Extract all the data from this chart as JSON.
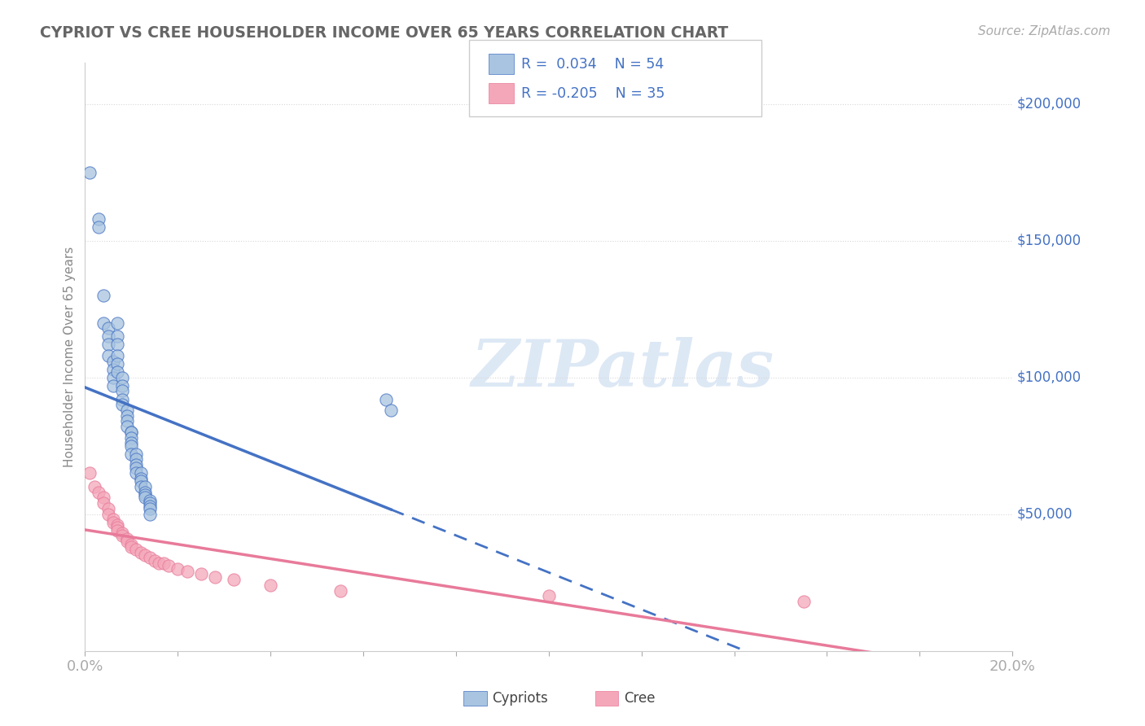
{
  "title": "CYPRIOT VS CREE HOUSEHOLDER INCOME OVER 65 YEARS CORRELATION CHART",
  "source_text": "Source: ZipAtlas.com",
  "ylabel": "Householder Income Over 65 years",
  "xlim": [
    0.0,
    0.2
  ],
  "ylim": [
    0,
    215000
  ],
  "xtick_vals": [
    0.0,
    0.02,
    0.04,
    0.06,
    0.08,
    0.1,
    0.12,
    0.14,
    0.16,
    0.18,
    0.2
  ],
  "ytick_values": [
    50000,
    100000,
    150000,
    200000
  ],
  "ytick_labels": [
    "$50,000",
    "$100,000",
    "$150,000",
    "$200,000"
  ],
  "background_color": "#ffffff",
  "cypriot_color": "#a8c4e0",
  "cree_color": "#f4a7b9",
  "cypriot_line_color": "#4472c4",
  "cree_line_color": "#e87a9a",
  "dashed_line_color": "#b0c4de",
  "grid_color": "#d8d8d8",
  "legend_text_color": "#4472c4",
  "axis_color": "#4472c4",
  "title_color": "#666666",
  "watermark": "ZIPatlas",
  "cypriot_x": [
    0.001,
    0.003,
    0.003,
    0.004,
    0.004,
    0.005,
    0.005,
    0.005,
    0.005,
    0.006,
    0.006,
    0.006,
    0.006,
    0.007,
    0.007,
    0.007,
    0.007,
    0.007,
    0.007,
    0.008,
    0.008,
    0.008,
    0.008,
    0.008,
    0.009,
    0.009,
    0.009,
    0.009,
    0.01,
    0.01,
    0.01,
    0.01,
    0.01,
    0.01,
    0.011,
    0.011,
    0.011,
    0.011,
    0.011,
    0.012,
    0.012,
    0.012,
    0.012,
    0.013,
    0.013,
    0.013,
    0.013,
    0.014,
    0.014,
    0.014,
    0.014,
    0.014,
    0.065,
    0.066
  ],
  "cypriot_y": [
    175000,
    158000,
    155000,
    130000,
    120000,
    118000,
    115000,
    112000,
    108000,
    106000,
    103000,
    100000,
    97000,
    120000,
    115000,
    112000,
    108000,
    105000,
    102000,
    100000,
    97000,
    95000,
    92000,
    90000,
    88000,
    86000,
    84000,
    82000,
    80000,
    80000,
    78000,
    76000,
    75000,
    72000,
    72000,
    70000,
    68000,
    67000,
    65000,
    65000,
    63000,
    62000,
    60000,
    60000,
    58000,
    57000,
    56000,
    55000,
    54000,
    53000,
    52000,
    50000,
    92000,
    88000
  ],
  "cree_x": [
    0.001,
    0.002,
    0.003,
    0.004,
    0.004,
    0.005,
    0.005,
    0.006,
    0.006,
    0.007,
    0.007,
    0.007,
    0.008,
    0.008,
    0.009,
    0.009,
    0.01,
    0.01,
    0.011,
    0.012,
    0.013,
    0.014,
    0.015,
    0.016,
    0.017,
    0.018,
    0.02,
    0.022,
    0.025,
    0.028,
    0.032,
    0.04,
    0.055,
    0.1,
    0.155
  ],
  "cree_y": [
    65000,
    60000,
    58000,
    56000,
    54000,
    52000,
    50000,
    48000,
    47000,
    46000,
    45000,
    44000,
    43000,
    42000,
    41000,
    40000,
    39000,
    38000,
    37000,
    36000,
    35000,
    34000,
    33000,
    32000,
    32000,
    31000,
    30000,
    29000,
    28000,
    27000,
    26000,
    24000,
    22000,
    20000,
    18000
  ]
}
